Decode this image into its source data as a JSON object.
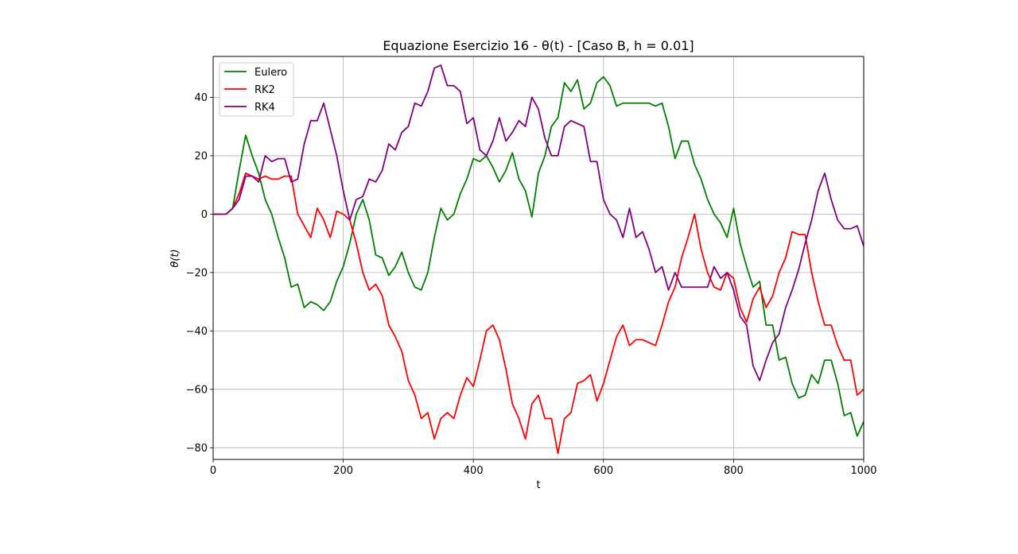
{
  "chart_data": {
    "type": "line",
    "title": "Equazione Esercizio 16 - θ(t) - [Caso B, h = 0.01]",
    "xlabel": "t",
    "ylabel": "θ(t)",
    "xlim": [
      0,
      1000
    ],
    "ylim": [
      -84,
      54
    ],
    "xticks": [
      0,
      200,
      400,
      600,
      800,
      1000
    ],
    "yticks": [
      -80,
      -60,
      -40,
      -20,
      0,
      20,
      40
    ],
    "grid": true,
    "legend_position": "top-left",
    "series": [
      {
        "name": "Eulero",
        "color": "#008000",
        "points": [
          [
            0,
            0
          ],
          [
            10,
            0
          ],
          [
            20,
            0
          ],
          [
            30,
            2
          ],
          [
            40,
            15
          ],
          [
            50,
            27
          ],
          [
            60,
            20
          ],
          [
            70,
            14
          ],
          [
            80,
            5
          ],
          [
            90,
            0
          ],
          [
            100,
            -8
          ],
          [
            110,
            -15
          ],
          [
            120,
            -25
          ],
          [
            130,
            -24
          ],
          [
            140,
            -32
          ],
          [
            150,
            -30
          ],
          [
            160,
            -31
          ],
          [
            170,
            -33
          ],
          [
            180,
            -30
          ],
          [
            190,
            -23
          ],
          [
            200,
            -18
          ],
          [
            210,
            -10
          ],
          [
            220,
            0
          ],
          [
            230,
            5
          ],
          [
            240,
            -2
          ],
          [
            250,
            -14
          ],
          [
            260,
            -15
          ],
          [
            270,
            -21
          ],
          [
            280,
            -18
          ],
          [
            290,
            -13
          ],
          [
            300,
            -20
          ],
          [
            310,
            -25
          ],
          [
            320,
            -26
          ],
          [
            330,
            -20
          ],
          [
            340,
            -8
          ],
          [
            350,
            2
          ],
          [
            360,
            -2
          ],
          [
            370,
            0
          ],
          [
            380,
            7
          ],
          [
            390,
            12
          ],
          [
            400,
            19
          ],
          [
            410,
            18
          ],
          [
            420,
            20
          ],
          [
            430,
            16
          ],
          [
            440,
            11
          ],
          [
            450,
            15
          ],
          [
            460,
            21
          ],
          [
            470,
            12
          ],
          [
            480,
            8
          ],
          [
            490,
            -1
          ],
          [
            500,
            14
          ],
          [
            510,
            20
          ],
          [
            520,
            30
          ],
          [
            530,
            33
          ],
          [
            540,
            45
          ],
          [
            550,
            42
          ],
          [
            560,
            46
          ],
          [
            570,
            36
          ],
          [
            580,
            38
          ],
          [
            590,
            45
          ],
          [
            600,
            47
          ],
          [
            610,
            44
          ],
          [
            620,
            37
          ],
          [
            630,
            38
          ],
          [
            640,
            38
          ],
          [
            650,
            38
          ],
          [
            660,
            38
          ],
          [
            670,
            38
          ],
          [
            680,
            37
          ],
          [
            690,
            38
          ],
          [
            700,
            30
          ],
          [
            710,
            19
          ],
          [
            720,
            25
          ],
          [
            730,
            25
          ],
          [
            740,
            17
          ],
          [
            750,
            12
          ],
          [
            760,
            5
          ],
          [
            770,
            0
          ],
          [
            780,
            -3
          ],
          [
            790,
            -8
          ],
          [
            800,
            2
          ],
          [
            810,
            -10
          ],
          [
            820,
            -18
          ],
          [
            830,
            -25
          ],
          [
            840,
            -23
          ],
          [
            850,
            -38
          ],
          [
            860,
            -38
          ],
          [
            870,
            -50
          ],
          [
            880,
            -49
          ],
          [
            890,
            -58
          ],
          [
            900,
            -63
          ],
          [
            910,
            -62
          ],
          [
            920,
            -55
          ],
          [
            930,
            -58
          ],
          [
            940,
            -50
          ],
          [
            950,
            -50
          ],
          [
            960,
            -58
          ],
          [
            970,
            -69
          ],
          [
            980,
            -68
          ],
          [
            990,
            -76
          ],
          [
            1000,
            -71
          ]
        ]
      },
      {
        "name": "RK2",
        "color": "#ff0000",
        "points": [
          [
            0,
            0
          ],
          [
            10,
            0
          ],
          [
            20,
            0
          ],
          [
            30,
            2
          ],
          [
            40,
            7
          ],
          [
            50,
            14
          ],
          [
            60,
            13
          ],
          [
            70,
            12
          ],
          [
            80,
            13
          ],
          [
            90,
            12
          ],
          [
            100,
            12
          ],
          [
            110,
            13
          ],
          [
            120,
            13
          ],
          [
            130,
            0
          ],
          [
            140,
            -4
          ],
          [
            150,
            -8
          ],
          [
            160,
            2
          ],
          [
            170,
            -2
          ],
          [
            180,
            -8
          ],
          [
            190,
            1
          ],
          [
            200,
            0
          ],
          [
            210,
            -2
          ],
          [
            220,
            -10
          ],
          [
            230,
            -20
          ],
          [
            240,
            -26
          ],
          [
            250,
            -24
          ],
          [
            260,
            -28
          ],
          [
            270,
            -38
          ],
          [
            280,
            -42
          ],
          [
            290,
            -47
          ],
          [
            300,
            -57
          ],
          [
            310,
            -62
          ],
          [
            320,
            -70
          ],
          [
            330,
            -68
          ],
          [
            340,
            -77
          ],
          [
            350,
            -70
          ],
          [
            360,
            -68
          ],
          [
            370,
            -70
          ],
          [
            380,
            -62
          ],
          [
            390,
            -56
          ],
          [
            400,
            -59
          ],
          [
            410,
            -50
          ],
          [
            420,
            -40
          ],
          [
            430,
            -38
          ],
          [
            440,
            -43
          ],
          [
            450,
            -53
          ],
          [
            460,
            -65
          ],
          [
            470,
            -70
          ],
          [
            480,
            -77
          ],
          [
            490,
            -65
          ],
          [
            500,
            -62
          ],
          [
            510,
            -70
          ],
          [
            520,
            -70
          ],
          [
            530,
            -82
          ],
          [
            540,
            -70
          ],
          [
            550,
            -68
          ],
          [
            560,
            -58
          ],
          [
            570,
            -57
          ],
          [
            580,
            -55
          ],
          [
            590,
            -64
          ],
          [
            600,
            -58
          ],
          [
            610,
            -50
          ],
          [
            620,
            -42
          ],
          [
            630,
            -38
          ],
          [
            640,
            -45
          ],
          [
            650,
            -43
          ],
          [
            660,
            -43
          ],
          [
            670,
            -44
          ],
          [
            680,
            -45
          ],
          [
            690,
            -38
          ],
          [
            700,
            -30
          ],
          [
            710,
            -25
          ],
          [
            720,
            -15
          ],
          [
            730,
            -8
          ],
          [
            740,
            0
          ],
          [
            750,
            -12
          ],
          [
            760,
            -20
          ],
          [
            770,
            -25
          ],
          [
            780,
            -26
          ],
          [
            790,
            -20
          ],
          [
            800,
            -22
          ],
          [
            810,
            -32
          ],
          [
            820,
            -37
          ],
          [
            830,
            -29
          ],
          [
            840,
            -25
          ],
          [
            850,
            -32
          ],
          [
            860,
            -28
          ],
          [
            870,
            -20
          ],
          [
            880,
            -15
          ],
          [
            890,
            -6
          ],
          [
            900,
            -7
          ],
          [
            910,
            -7
          ],
          [
            920,
            -20
          ],
          [
            930,
            -30
          ],
          [
            940,
            -38
          ],
          [
            950,
            -38
          ],
          [
            960,
            -45
          ],
          [
            970,
            -50
          ],
          [
            980,
            -50
          ],
          [
            990,
            -62
          ],
          [
            1000,
            -60
          ]
        ]
      },
      {
        "name": "RK4",
        "color": "#800080",
        "points": [
          [
            0,
            0
          ],
          [
            10,
            0
          ],
          [
            20,
            0
          ],
          [
            30,
            2
          ],
          [
            40,
            5
          ],
          [
            50,
            13
          ],
          [
            60,
            13
          ],
          [
            70,
            11
          ],
          [
            80,
            20
          ],
          [
            90,
            18
          ],
          [
            100,
            19
          ],
          [
            110,
            19
          ],
          [
            120,
            11
          ],
          [
            130,
            12
          ],
          [
            140,
            24
          ],
          [
            150,
            32
          ],
          [
            160,
            32
          ],
          [
            170,
            38
          ],
          [
            180,
            29
          ],
          [
            190,
            20
          ],
          [
            200,
            8
          ],
          [
            210,
            -2
          ],
          [
            220,
            5
          ],
          [
            230,
            6
          ],
          [
            240,
            12
          ],
          [
            250,
            11
          ],
          [
            260,
            15
          ],
          [
            270,
            24
          ],
          [
            280,
            22
          ],
          [
            290,
            28
          ],
          [
            300,
            30
          ],
          [
            310,
            38
          ],
          [
            320,
            37
          ],
          [
            330,
            42
          ],
          [
            340,
            50
          ],
          [
            350,
            51
          ],
          [
            360,
            44
          ],
          [
            370,
            44
          ],
          [
            380,
            42
          ],
          [
            390,
            31
          ],
          [
            400,
            33
          ],
          [
            410,
            22
          ],
          [
            420,
            20
          ],
          [
            430,
            25
          ],
          [
            440,
            33
          ],
          [
            450,
            25
          ],
          [
            460,
            28
          ],
          [
            470,
            32
          ],
          [
            480,
            30
          ],
          [
            490,
            40
          ],
          [
            500,
            36
          ],
          [
            510,
            26
          ],
          [
            520,
            20
          ],
          [
            530,
            20
          ],
          [
            540,
            30
          ],
          [
            550,
            32
          ],
          [
            560,
            31
          ],
          [
            570,
            30
          ],
          [
            580,
            18
          ],
          [
            590,
            18
          ],
          [
            600,
            5
          ],
          [
            610,
            0
          ],
          [
            620,
            -2
          ],
          [
            630,
            -8
          ],
          [
            640,
            2
          ],
          [
            650,
            -8
          ],
          [
            660,
            -6
          ],
          [
            670,
            -12
          ],
          [
            680,
            -20
          ],
          [
            690,
            -18
          ],
          [
            700,
            -26
          ],
          [
            710,
            -20
          ],
          [
            720,
            -25
          ],
          [
            730,
            -25
          ],
          [
            740,
            -25
          ],
          [
            750,
            -25
          ],
          [
            760,
            -25
          ],
          [
            770,
            -18
          ],
          [
            780,
            -22
          ],
          [
            790,
            -20
          ],
          [
            800,
            -26
          ],
          [
            810,
            -35
          ],
          [
            820,
            -38
          ],
          [
            830,
            -52
          ],
          [
            840,
            -57
          ],
          [
            850,
            -50
          ],
          [
            860,
            -44
          ],
          [
            870,
            -41
          ],
          [
            880,
            -32
          ],
          [
            890,
            -26
          ],
          [
            900,
            -19
          ],
          [
            910,
            -10
          ],
          [
            920,
            -2
          ],
          [
            930,
            8
          ],
          [
            940,
            14
          ],
          [
            950,
            5
          ],
          [
            960,
            -2
          ],
          [
            970,
            -5
          ],
          [
            980,
            -5
          ],
          [
            990,
            -4
          ],
          [
            1000,
            -11
          ]
        ]
      }
    ]
  }
}
